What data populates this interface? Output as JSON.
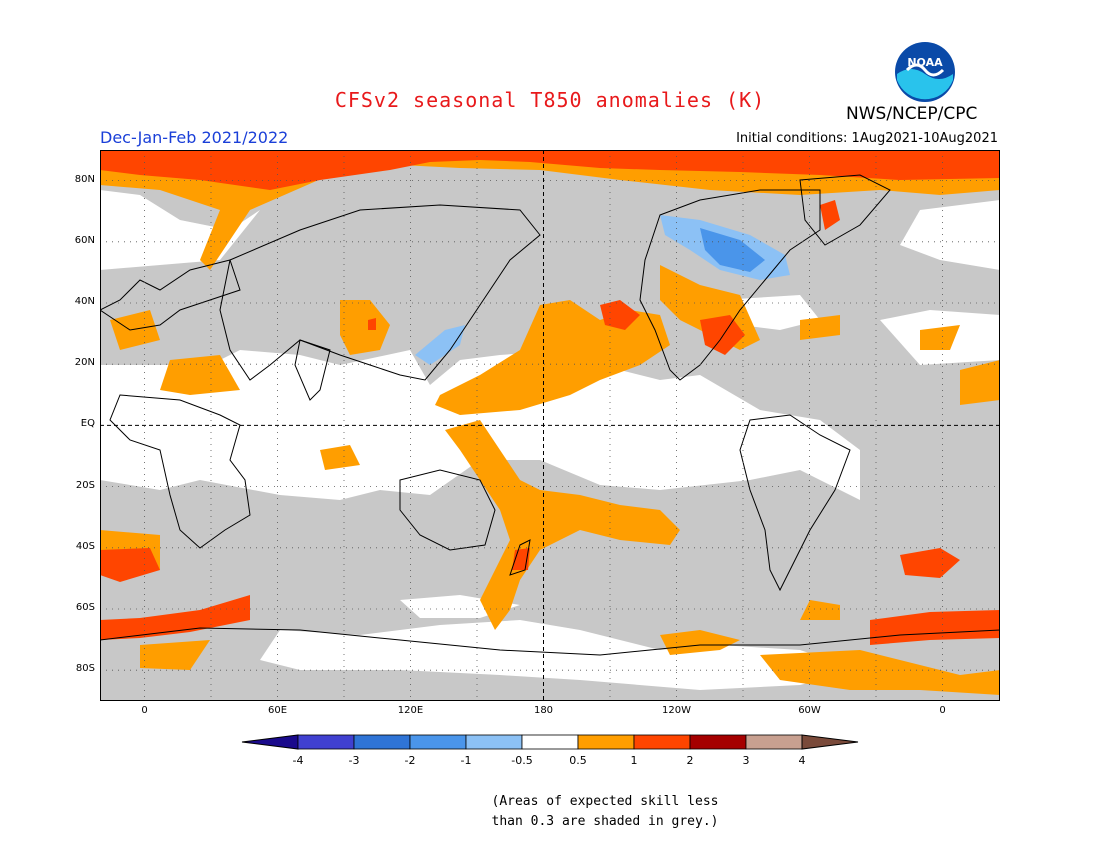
{
  "header": {
    "title": "CFSv2 seasonal T850 anomalies (K)",
    "org": "NWS/NCEP/CPC",
    "season": "Dec-Jan-Feb 2021/2022",
    "initial_conditions": "Initial conditions: 1Aug2021-10Aug2021",
    "logo_text": "NOAA"
  },
  "map": {
    "lat_labels": [
      "80N",
      "60N",
      "40N",
      "20N",
      "EQ",
      "20S",
      "40S",
      "60S",
      "80S"
    ],
    "lon_labels": [
      "0",
      "60E",
      "120E",
      "180",
      "120W",
      "60W",
      "0"
    ]
  },
  "colorbar": {
    "ticks": [
      "-4",
      "-3",
      "-2",
      "-1",
      "-0.5",
      "0.5",
      "1",
      "2",
      "3",
      "4"
    ],
    "colors": [
      "#1a0a8c",
      "#4040d0",
      "#2f74d6",
      "#4a95ea",
      "#8cc1f5",
      "#ffffff",
      "#ff9e00",
      "#ff4500",
      "#a50000",
      "#c8a090",
      "#7a4a3a"
    ]
  },
  "note": {
    "line1": "(Areas of expected skill less",
    "line2": "than 0.3 are shaded in grey.)"
  },
  "colors": {
    "title": "#e8191b",
    "season": "#1a3fd8",
    "grey_skill": "#c8c8c8",
    "land_outline": "#000000"
  }
}
